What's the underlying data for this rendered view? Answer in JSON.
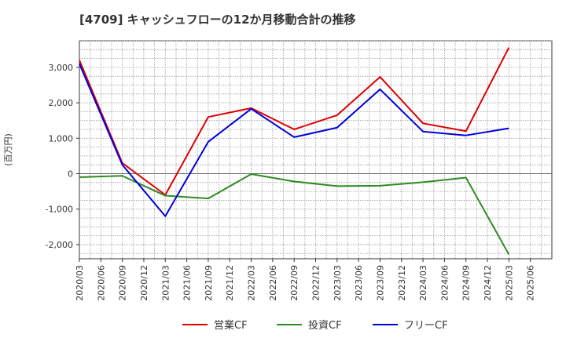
{
  "chart_data": {
    "type": "line",
    "title": "[4709]  キャッシュフローの12か月移動合計の推移",
    "ylabel": "(百万円)",
    "xlabel": "",
    "ylim": [
      -2400,
      3750
    ],
    "yticks": [
      3000,
      2000,
      1000,
      0,
      -1000,
      -2000
    ],
    "ytick_labels": [
      "3,000",
      "2,000",
      "1,000",
      "0",
      "-1,000",
      "-2,000"
    ],
    "categories": [
      "2020/03",
      "2020/06",
      "2020/09",
      "2020/12",
      "2021/03",
      "2021/06",
      "2021/09",
      "2021/12",
      "2022/03",
      "2022/06",
      "2022/09",
      "2022/12",
      "2023/03",
      "2023/06",
      "2023/09",
      "2023/12",
      "2024/03",
      "2024/06",
      "2024/09",
      "2024/12",
      "2025/03",
      "2025/06"
    ],
    "grid": true,
    "legend_position": "bottom",
    "series": [
      {
        "name": "営業CF",
        "color": "#dd0000",
        "values": [
          3200,
          null,
          300,
          null,
          -600,
          null,
          1600,
          null,
          1850,
          null,
          1250,
          null,
          1650,
          null,
          2730,
          null,
          1420,
          null,
          1200,
          null,
          3560,
          null
        ]
      },
      {
        "name": "投資CF",
        "color": "#2e8b22",
        "values": [
          -100,
          null,
          -60,
          null,
          -620,
          null,
          -700,
          null,
          -10,
          null,
          -220,
          null,
          -350,
          null,
          -340,
          null,
          -240,
          null,
          -110,
          null,
          -2280,
          null
        ]
      },
      {
        "name": "フリーCF",
        "color": "#0000dd",
        "values": [
          3100,
          null,
          250,
          null,
          -1200,
          null,
          900,
          null,
          1830,
          null,
          1030,
          null,
          1300,
          null,
          2380,
          null,
          1190,
          null,
          1080,
          null,
          1280,
          null
        ]
      }
    ]
  }
}
